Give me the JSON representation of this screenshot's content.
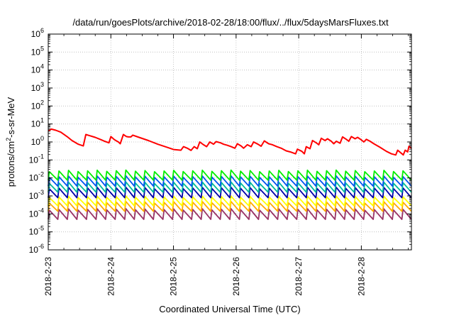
{
  "chart_data": {
    "type": "line",
    "title": "/data/run/goesPlots/archive/2018-02-28/18:00/flux/../flux/5daysMarsFluxes.txt",
    "xlabel": "Coordinated Universal Time (UTC)",
    "ylabel": {
      "pre": "protons/cm",
      "sup": "2",
      "post": "-s-sr-MeV"
    },
    "yscale": "log",
    "ylim_exp": [
      -6,
      6
    ],
    "xlim_days": [
      0,
      5.8
    ],
    "x_ticks": [
      "2018-2-23",
      "2018-2-24",
      "2018-2-25",
      "2018-2-26",
      "2018-2-27",
      "2018-2-28"
    ],
    "y_tick_exponents": [
      -6,
      -5,
      -4,
      -3,
      -2,
      -1,
      0,
      1,
      2,
      3,
      4,
      5,
      6
    ],
    "grid": true,
    "series": [
      {
        "color": "#ff0000",
        "kind": "main"
      },
      {
        "color": "#00ee00",
        "kind": "saw",
        "peak": 0.025,
        "trough": 0.0075
      },
      {
        "color": "#0055ee",
        "kind": "saw",
        "peak": 0.012,
        "trough": 0.0035
      },
      {
        "color": "#00bb99",
        "kind": "saw",
        "peak": 0.0055,
        "trough": 0.0016
      },
      {
        "color": "#0000aa",
        "kind": "saw",
        "peak": 0.0028,
        "trough": 0.0008
      },
      {
        "color": "#ffff00",
        "kind": "saw",
        "peak": 0.0009,
        "trough": 0.00028
      },
      {
        "color": "#ffaa00",
        "kind": "saw",
        "peak": 0.00045,
        "trough": 0.00014
      },
      {
        "color": "#993366",
        "kind": "saw",
        "peak": 0.00018,
        "trough": 5e-05
      }
    ],
    "main_points": [
      [
        0.0,
        4.0
      ],
      [
        0.05,
        5.2
      ],
      [
        0.12,
        4.5
      ],
      [
        0.2,
        3.5
      ],
      [
        0.3,
        2.0
      ],
      [
        0.38,
        1.2
      ],
      [
        0.48,
        0.75
      ],
      [
        0.56,
        0.6
      ],
      [
        0.6,
        2.6
      ],
      [
        0.75,
        1.8
      ],
      [
        0.85,
        1.3
      ],
      [
        0.9,
        1.1
      ],
      [
        0.97,
        0.9
      ],
      [
        1.0,
        2.0
      ],
      [
        1.05,
        1.4
      ],
      [
        1.08,
        1.2
      ],
      [
        1.12,
        1.0
      ],
      [
        1.15,
        0.8
      ],
      [
        1.2,
        2.6
      ],
      [
        1.25,
        2.0
      ],
      [
        1.28,
        1.9
      ],
      [
        1.32,
        1.9
      ],
      [
        1.35,
        2.4
      ],
      [
        1.45,
        1.8
      ],
      [
        1.6,
        1.2
      ],
      [
        1.75,
        0.75
      ],
      [
        1.9,
        0.5
      ],
      [
        2.0,
        0.38
      ],
      [
        2.12,
        0.35
      ],
      [
        2.16,
        0.55
      ],
      [
        2.22,
        0.45
      ],
      [
        2.28,
        0.34
      ],
      [
        2.33,
        0.55
      ],
      [
        2.38,
        0.42
      ],
      [
        2.42,
        1.0
      ],
      [
        2.48,
        0.7
      ],
      [
        2.53,
        0.55
      ],
      [
        2.58,
        1.0
      ],
      [
        2.64,
        0.75
      ],
      [
        2.68,
        1.05
      ],
      [
        2.75,
        0.9
      ],
      [
        2.8,
        0.75
      ],
      [
        2.86,
        0.65
      ],
      [
        2.92,
        0.55
      ],
      [
        2.98,
        0.45
      ],
      [
        3.02,
        0.8
      ],
      [
        3.08,
        0.6
      ],
      [
        3.12,
        0.45
      ],
      [
        3.18,
        0.7
      ],
      [
        3.24,
        0.55
      ],
      [
        3.28,
        1.0
      ],
      [
        3.35,
        0.75
      ],
      [
        3.4,
        0.58
      ],
      [
        3.45,
        1.15
      ],
      [
        3.52,
        0.8
      ],
      [
        3.58,
        0.7
      ],
      [
        3.65,
        0.55
      ],
      [
        3.72,
        0.45
      ],
      [
        3.8,
        0.32
      ],
      [
        3.88,
        0.27
      ],
      [
        3.95,
        0.22
      ],
      [
        3.98,
        0.4
      ],
      [
        4.05,
        0.3
      ],
      [
        4.09,
        0.22
      ],
      [
        4.12,
        0.55
      ],
      [
        4.18,
        0.42
      ],
      [
        4.22,
        1.2
      ],
      [
        4.28,
        0.9
      ],
      [
        4.32,
        0.7
      ],
      [
        4.36,
        1.6
      ],
      [
        4.42,
        1.2
      ],
      [
        4.46,
        1.5
      ],
      [
        4.52,
        1.1
      ],
      [
        4.56,
        0.8
      ],
      [
        4.6,
        1.1
      ],
      [
        4.66,
        0.85
      ],
      [
        4.7,
        1.9
      ],
      [
        4.76,
        1.4
      ],
      [
        4.8,
        1.1
      ],
      [
        4.84,
        2.0
      ],
      [
        4.9,
        1.5
      ],
      [
        4.94,
        1.8
      ],
      [
        5.0,
        1.3
      ],
      [
        5.04,
        1.0
      ],
      [
        5.08,
        1.4
      ],
      [
        5.14,
        1.1
      ],
      [
        5.2,
        0.8
      ],
      [
        5.3,
        0.5
      ],
      [
        5.4,
        0.3
      ],
      [
        5.48,
        0.22
      ],
      [
        5.55,
        0.19
      ],
      [
        5.58,
        0.35
      ],
      [
        5.63,
        0.25
      ],
      [
        5.67,
        0.19
      ],
      [
        5.7,
        0.35
      ],
      [
        5.74,
        0.28
      ],
      [
        5.76,
        0.58
      ],
      [
        5.8,
        0.45
      ]
    ]
  }
}
